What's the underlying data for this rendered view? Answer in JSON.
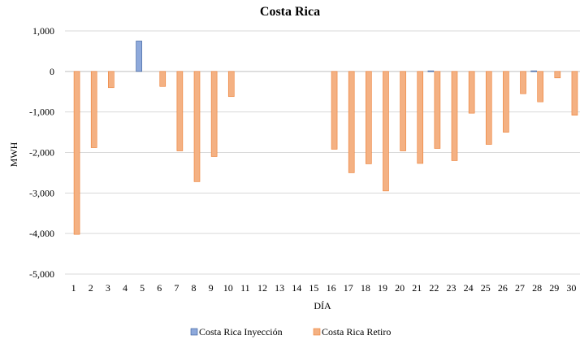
{
  "chart_data": {
    "type": "bar",
    "title": "Costa  Rica",
    "xlabel": "DÍA",
    "ylabel": "MWH",
    "ylim": [
      -5000,
      1000
    ],
    "yticks": [
      1000,
      0,
      -1000,
      -2000,
      -3000,
      -4000,
      -5000
    ],
    "ytick_labels": [
      "1,000",
      "0",
      "-1,000",
      "-2,000",
      "-3,000",
      "-4,000",
      "-5,000"
    ],
    "grid": true,
    "legend_position": "bottom",
    "categories": [
      "1",
      "2",
      "3",
      "4",
      "5",
      "6",
      "7",
      "8",
      "9",
      "10",
      "11",
      "12",
      "13",
      "14",
      "15",
      "16",
      "17",
      "18",
      "19",
      "20",
      "21",
      "22",
      "23",
      "24",
      "25",
      "26",
      "27",
      "28",
      "29",
      "30"
    ],
    "series": [
      {
        "name": "Costa Rica Inyección",
        "color": "#8EA9DB",
        "stroke": "#2F5597",
        "values": [
          0,
          0,
          0,
          0,
          750,
          0,
          0,
          0,
          0,
          0,
          0,
          0,
          0,
          0,
          0,
          0,
          0,
          0,
          0,
          0,
          0,
          15,
          0,
          0,
          0,
          0,
          0,
          15,
          0,
          0
        ]
      },
      {
        "name": "Costa Rica Retiro",
        "color": "#F4B183",
        "stroke": "#ED7D31",
        "values": [
          -4020,
          -1880,
          -400,
          0,
          0,
          -370,
          -1960,
          -2720,
          -2100,
          -620,
          0,
          0,
          0,
          0,
          0,
          -1920,
          -2500,
          -2280,
          -2950,
          -1960,
          -2270,
          -1900,
          -2200,
          -1030,
          -1800,
          -1500,
          -550,
          -750,
          -160,
          -1080
        ]
      }
    ]
  }
}
